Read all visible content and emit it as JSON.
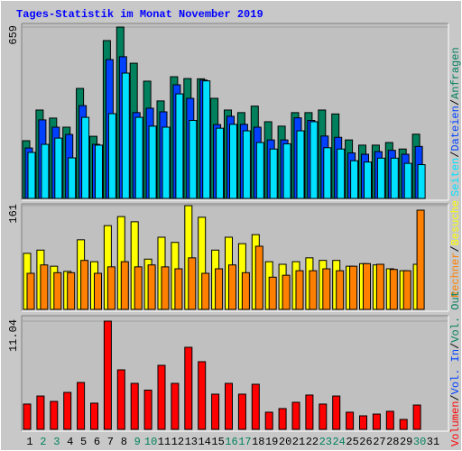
{
  "title": "Tages-Statistik im Monat November 2019",
  "legend_separator": "/",
  "categories": [
    "1",
    "2",
    "3",
    "4",
    "5",
    "6",
    "7",
    "8",
    "9",
    "10",
    "11",
    "12",
    "13",
    "14",
    "15",
    "16",
    "17",
    "18",
    "19",
    "20",
    "21",
    "22",
    "23",
    "24",
    "25",
    "26",
    "27",
    "28",
    "29",
    "30",
    "31"
  ],
  "category_colors": [
    "#000000",
    "#00805c",
    "#00805c",
    "#000000",
    "#000000",
    "#000000",
    "#000000",
    "#000000",
    "#00805c",
    "#00805c",
    "#000000",
    "#000000",
    "#000000",
    "#000000",
    "#000000",
    "#00805c",
    "#00805c",
    "#000000",
    "#000000",
    "#000000",
    "#000000",
    "#000000",
    "#00805c",
    "#00805c",
    "#000000",
    "#000000",
    "#000000",
    "#000000",
    "#000000",
    "#00805c",
    "#000000"
  ],
  "chart_data": [
    {
      "type": "bar",
      "ylim": [
        0,
        659
      ],
      "yticks": [
        659
      ],
      "series": [
        {
          "name": "Anfragen",
          "color": "#00805c",
          "values": [
            222,
            340,
            309,
            274,
            423,
            239,
            607,
            659,
            520,
            451,
            375,
            468,
            461,
            460,
            385,
            340,
            330,
            355,
            295,
            278,
            330,
            330,
            340,
            325,
            225,
            205,
            205,
            215,
            190,
            247,
            null
          ]
        },
        {
          "name": "Dateien",
          "color": "#0040ff",
          "values": [
            194,
            302,
            274,
            246,
            357,
            208,
            534,
            545,
            330,
            347,
            333,
            437,
            385,
            455,
            284,
            316,
            285,
            274,
            225,
            225,
            310,
            300,
            240,
            235,
            175,
            170,
            180,
            185,
            170,
            200,
            null
          ]
        },
        {
          "name": "Seiten",
          "color": "#00e0ff",
          "values": [
            177,
            208,
            232,
            156,
            312,
            205,
            326,
            482,
            312,
            278,
            274,
            402,
            300,
            452,
            270,
            285,
            260,
            215,
            190,
            210,
            260,
            295,
            195,
            190,
            145,
            140,
            155,
            155,
            135,
            130,
            null
          ]
        }
      ]
    },
    {
      "type": "bar",
      "ylim": [
        0,
        161
      ],
      "yticks": [
        161
      ],
      "series": [
        {
          "name": "Besuche",
          "color": "#ffff00",
          "values": [
            87,
            92,
            67,
            59,
            108,
            74,
            130,
            144,
            136,
            78,
            112,
            104,
            161,
            143,
            92,
            112,
            102,
            116,
            74,
            70,
            74,
            80,
            76,
            76,
            67,
            71,
            69,
            63,
            60,
            70,
            null
          ]
        },
        {
          "name": "Rechner",
          "color": "#ff8000",
          "values": [
            56,
            69,
            57,
            57,
            76,
            56,
            66,
            74,
            66,
            69,
            66,
            63,
            80,
            56,
            63,
            69,
            57,
            98,
            50,
            53,
            60,
            60,
            63,
            60,
            67,
            71,
            70,
            62,
            60,
            154,
            null
          ]
        }
      ]
    },
    {
      "type": "bar",
      "ylim": [
        0,
        11.04
      ],
      "yticks": [
        11.04
      ],
      "series": [
        {
          "name": "Volumen",
          "color": "#ff0000",
          "values": [
            2.58,
            3.4,
            2.85,
            3.77,
            4.78,
            2.67,
            11.04,
            6.07,
            4.69,
            4.0,
            6.53,
            4.69,
            8.37,
            6.9,
            3.59,
            4.69,
            3.59,
            4.6,
            1.75,
            2.12,
            2.76,
            3.5,
            2.58,
            3.4,
            1.75,
            1.38,
            1.56,
            1.84,
            1.01,
            2.48,
            null
          ]
        },
        {
          "name": "Vol. In",
          "color": "#0040ff",
          "values": [
            null,
            null,
            null,
            null,
            null,
            null,
            null,
            null,
            null,
            null,
            null,
            null,
            null,
            null,
            null,
            null,
            null,
            null,
            null,
            null,
            null,
            null,
            null,
            null,
            null,
            null,
            null,
            null,
            null,
            null,
            null
          ]
        },
        {
          "name": "Vol. Out",
          "color": "#00805c",
          "values": [
            null,
            null,
            null,
            null,
            null,
            null,
            null,
            null,
            null,
            null,
            null,
            null,
            null,
            null,
            null,
            null,
            null,
            null,
            null,
            null,
            null,
            null,
            null,
            null,
            null,
            null,
            null,
            null,
            null,
            null,
            null
          ]
        }
      ]
    }
  ]
}
